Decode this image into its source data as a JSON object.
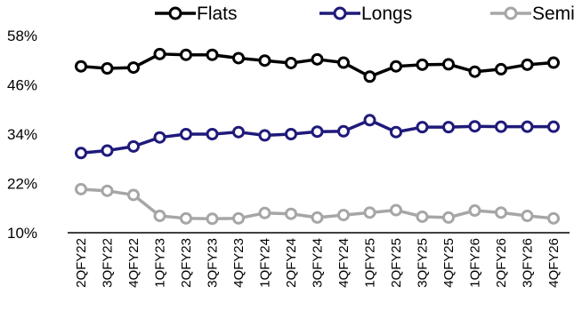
{
  "chart_data": {
    "type": "line",
    "title": "",
    "xlabel": "",
    "ylabel": "",
    "categories": [
      "2QFY22",
      "3QFY22",
      "4QFY22",
      "1QFY23",
      "2QFY23",
      "3QFY23",
      "4QFY23",
      "1QFY24",
      "2QFY24",
      "3QFY24",
      "4QFY24",
      "1QFY25",
      "2QFY25",
      "3QFY25",
      "4QFY25",
      "1QFY26",
      "2QFY26",
      "3QFY26",
      "4QFY26"
    ],
    "ylim": [
      10,
      58
    ],
    "yticks": [
      10,
      22,
      34,
      46,
      58
    ],
    "ytick_labels": [
      "10%",
      "22%",
      "34%",
      "46%",
      "58%"
    ],
    "grid": false,
    "legend_position": "top",
    "series": [
      {
        "name": "Flats",
        "color": "#000000",
        "values": [
          50.5,
          50.0,
          50.2,
          53.5,
          53.3,
          53.3,
          52.5,
          51.9,
          51.3,
          52.2,
          51.4,
          48.0,
          50.5,
          50.9,
          51.0,
          49.2,
          49.8,
          50.9,
          51.4
        ]
      },
      {
        "name": "Longs",
        "color": "#1f1a7a",
        "values": [
          29.4,
          30.0,
          31.0,
          33.2,
          34.0,
          34.0,
          34.5,
          33.7,
          34.0,
          34.6,
          34.7,
          37.4,
          34.5,
          35.7,
          35.7,
          35.9,
          35.8,
          35.8,
          35.8
        ]
      },
      {
        "name": "Semis",
        "color": "#a6a6a6",
        "values": [
          20.6,
          20.2,
          19.2,
          14.1,
          13.5,
          13.4,
          13.5,
          14.8,
          14.6,
          13.7,
          14.3,
          14.9,
          15.5,
          13.9,
          13.7,
          15.4,
          14.9,
          14.1,
          13.5
        ]
      }
    ]
  }
}
